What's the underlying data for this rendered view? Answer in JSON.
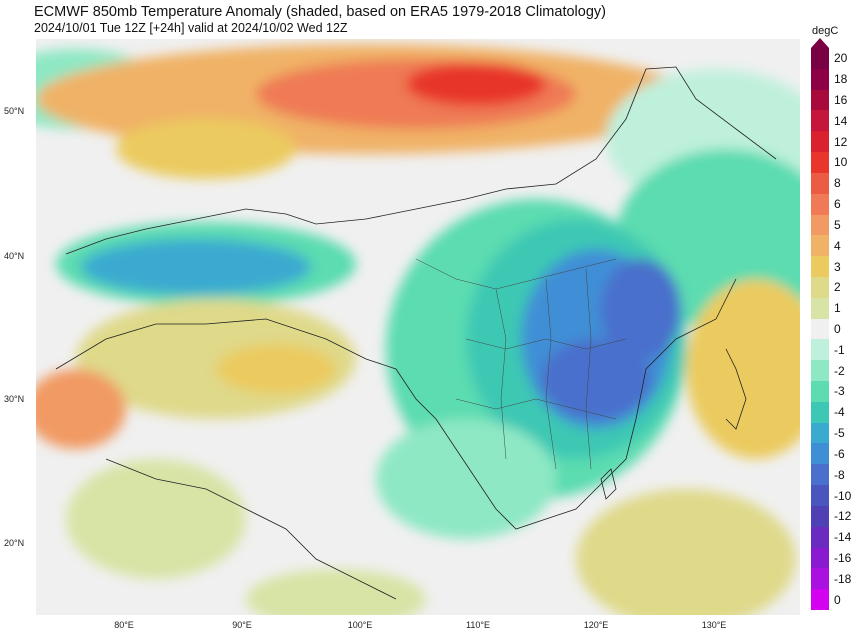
{
  "title": "ECMWF 850mb Temperature Anomaly (shaded, based on ERA5 1979-2018 Climatology)",
  "subtitle": "2024/10/01 Tue 12Z [+24h] valid at 2024/10/02 Wed 12Z",
  "map": {
    "lat_labels": [
      "50°N",
      "40°N",
      "30°N",
      "20°N"
    ],
    "lon_labels": [
      "80°E",
      "90°E",
      "100°E",
      "110°E",
      "120°E",
      "130°E"
    ]
  },
  "colorbar": {
    "unit": "degC",
    "levels": [
      {
        "label": "20",
        "color": "#7a0044"
      },
      {
        "label": "18",
        "color": "#8e0045"
      },
      {
        "label": "16",
        "color": "#a80a3c"
      },
      {
        "label": "14",
        "color": "#c5153a"
      },
      {
        "label": "12",
        "color": "#d9222e"
      },
      {
        "label": "10",
        "color": "#e8362c"
      },
      {
        "label": "8",
        "color": "#ec5b44"
      },
      {
        "label": "6",
        "color": "#ef7a55"
      },
      {
        "label": "5",
        "color": "#f19a63"
      },
      {
        "label": "4",
        "color": "#f0b266"
      },
      {
        "label": "3",
        "color": "#ebcb5f"
      },
      {
        "label": "2",
        "color": "#dfd98a"
      },
      {
        "label": "1",
        "color": "#d7e4a6"
      },
      {
        "label": "0",
        "color": "#f0f0f0"
      },
      {
        "label": "-1",
        "color": "#bff0dc"
      },
      {
        "label": "-2",
        "color": "#8ee8c4"
      },
      {
        "label": "-3",
        "color": "#5cdcb0"
      },
      {
        "label": "-4",
        "color": "#3cc8b4"
      },
      {
        "label": "-5",
        "color": "#3aaad0"
      },
      {
        "label": "-6",
        "color": "#3f8fd6"
      },
      {
        "label": "-8",
        "color": "#4a6fcc"
      },
      {
        "label": "-10",
        "color": "#4a55bd"
      },
      {
        "label": "-12",
        "color": "#5040b5"
      },
      {
        "label": "-14",
        "color": "#6a2cc0"
      },
      {
        "label": "-16",
        "color": "#8a1ad0"
      },
      {
        "label": "-18",
        "color": "#aa10e0"
      },
      {
        "label": "0",
        "color": "#d400f0"
      }
    ]
  }
}
